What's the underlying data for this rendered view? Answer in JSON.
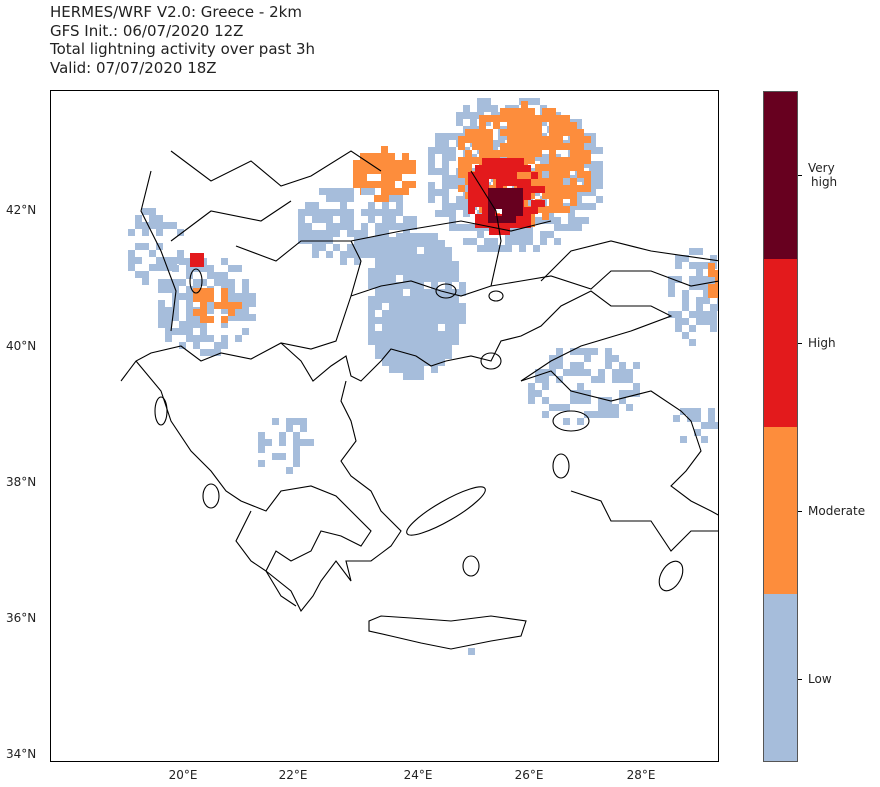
{
  "title": {
    "line1": "HERMES/WRF V2.0: Greece - 2km",
    "line2": "GFS Init.: 06/07/2020 12Z",
    "line3": "Total lightning activity over past 3h",
    "line4": "Valid: 07/07/2020 18Z"
  },
  "map": {
    "lat_ticks": [
      "42°N",
      "40°N",
      "38°N",
      "36°N",
      "34°N"
    ],
    "lon_ticks": [
      "20°E",
      "22°E",
      "24°E",
      "26°E",
      "28°E"
    ]
  },
  "colorbar": {
    "levels": [
      {
        "label": "Very\nhigh",
        "color": "#67001f"
      },
      {
        "label": "High",
        "color": "#e31a1c"
      },
      {
        "label": "Moderate",
        "color": "#fd8d3c"
      },
      {
        "label": "Low",
        "color": "#a6bddb"
      }
    ],
    "label_very_high_1": "Very",
    "label_very_high_2": "high",
    "label_high": "High",
    "label_moderate": "Moderate",
    "label_low": "Low"
  }
}
